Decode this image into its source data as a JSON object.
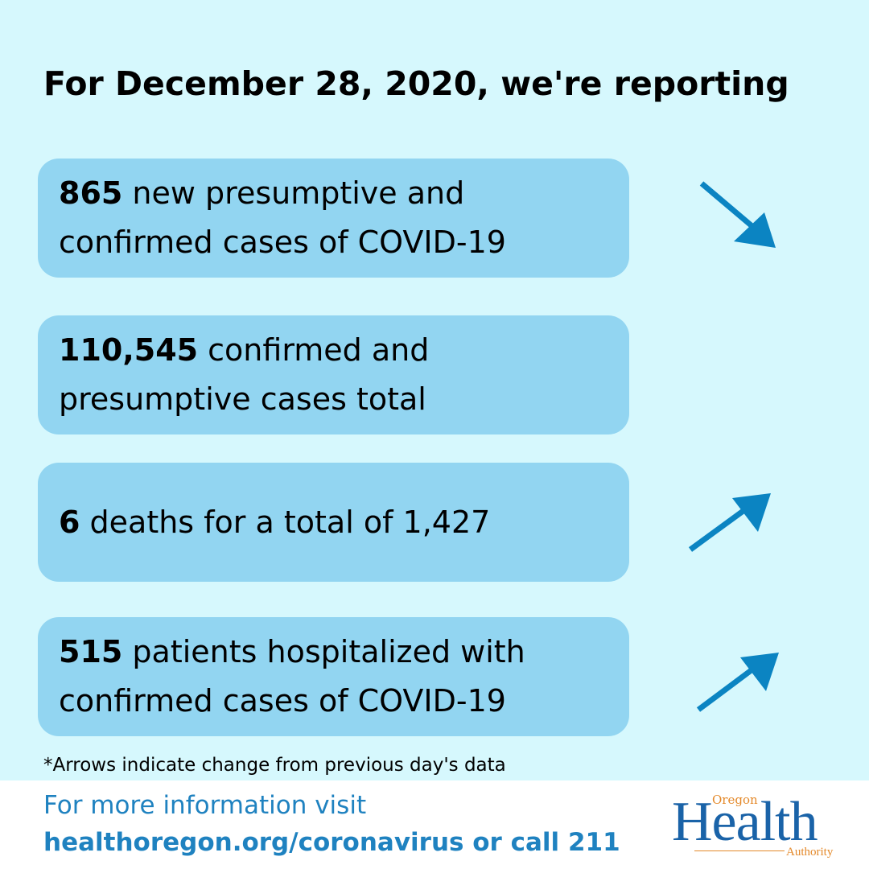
{
  "headline": "For December 28, 2020, we're reporting",
  "stats": [
    {
      "value": "865",
      "text": " new presumptive and confirmed cases of COVID-19",
      "trend": "down"
    },
    {
      "value": "110,545",
      "text": " confirmed and presumptive cases total",
      "trend": "none"
    },
    {
      "value": "6",
      "text": " deaths for a total of 1,427",
      "trend": "up"
    },
    {
      "value": "515",
      "text": " patients hospitalized with confirmed cases of COVID-19",
      "trend": "up"
    }
  ],
  "footnote": "*Arrows indicate change from previous day's data",
  "info": {
    "line1": "For more information visit",
    "line2": "healthoregon.org/coronavirus or call 211"
  },
  "logo": {
    "oregon": "Oregon",
    "health": "Health",
    "authority": "Authority"
  },
  "colors": {
    "background": "#d6f8fd",
    "card": "#92d5f1",
    "arrow": "#0b84c2",
    "link_text": "#1f82c0",
    "logo_blue": "#1a63a8",
    "logo_orange": "#e4892a"
  },
  "icons": {
    "card_1": "arrow-down-right-icon",
    "card_3": "arrow-up-right-icon",
    "card_4": "arrow-up-right-icon"
  }
}
